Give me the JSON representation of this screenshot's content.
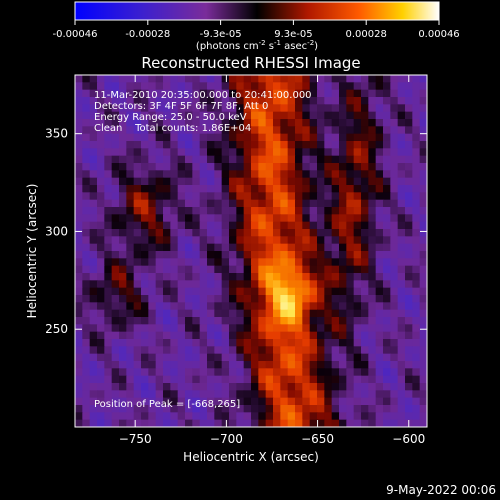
{
  "colorbar": {
    "ticks": [
      "-0.00046",
      "-0.00028",
      "-9.3e-05",
      "9.3e-05",
      "0.00028",
      "0.00046"
    ],
    "units_label": "(photons cm",
    "units_exp1": "-2",
    "units_mid": " s",
    "units_exp2": "-1",
    "units_end": " asec",
    "units_exp3": "-2",
    "units_close": ")"
  },
  "chart_data": {
    "type": "heatmap",
    "title": "Reconstructed RHESSI Image",
    "xlabel": "Heliocentric X (arcsec)",
    "ylabel": "Heliocentric Y (arcsec)",
    "xlim": [
      -783,
      -590
    ],
    "ylim": [
      200,
      380
    ],
    "xticks": [
      -750,
      -700,
      -650,
      -600
    ],
    "yticks": [
      250,
      300,
      350
    ],
    "color_range": [
      -0.00046,
      0.00046
    ],
    "annotations": [
      "11-Mar-2010 20:35:00.000 to 20:41:00.000",
      "Detectors: 3F 4F 5F 6F 7F 8F, Att 0",
      "Energy Range: 25.0 - 50.0 keV",
      "Clean    Total counts: 1.86E+04"
    ],
    "peak_label": "Position of Peak = [-668,265]",
    "peak": [
      -668,
      265
    ],
    "date_stamp": "9-May-2022 00:06"
  }
}
